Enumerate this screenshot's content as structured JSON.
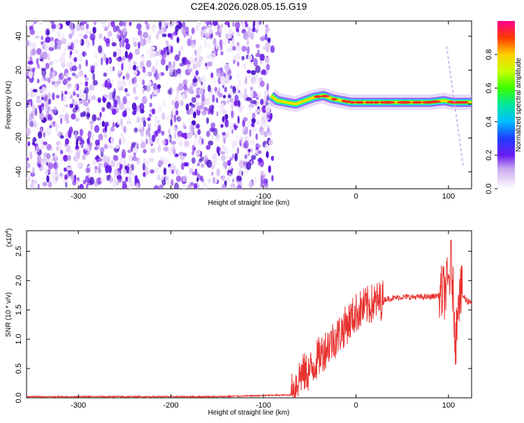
{
  "chart_data": [
    {
      "type": "heatmap",
      "title": "C2E4.2026.028.05.15.G19",
      "xlabel": "Height of straight line (km)",
      "ylabel": "Frequency (Hz)",
      "xlim": [
        -356,
        125
      ],
      "ylim": [
        -50,
        49
      ],
      "xticks": [
        -300,
        -200,
        -100,
        0,
        100
      ],
      "yticks": [
        -40,
        -20,
        0,
        20,
        40
      ],
      "noise_region_x": [
        -356,
        -90
      ],
      "signal_trace": {
        "x": [
          -92,
          -85,
          -75,
          -65,
          -55,
          -45,
          -35,
          -25,
          -15,
          -5,
          5,
          20,
          40,
          60,
          80,
          95,
          105,
          115,
          125
        ],
        "freq": [
          5,
          2,
          1,
          0,
          2,
          4,
          5,
          3,
          2,
          1,
          1,
          1,
          1,
          1,
          1,
          2,
          1,
          1,
          1
        ]
      },
      "colorbar": {
        "label": "Normalized spectral amplitude",
        "range": [
          0,
          1
        ],
        "ticks": [
          0.0,
          0.2,
          0.4,
          0.6,
          0.8
        ]
      }
    },
    {
      "type": "line",
      "title": "",
      "xlabel": "Height of straight line (km)",
      "ylabel": "SNR (10 * v/v)",
      "y_multiplier": "(x10",
      "y_multiplier_exp": "4",
      "y_multiplier_close": ")",
      "xlim": [
        -356,
        125
      ],
      "ylim": [
        0,
        2.85
      ],
      "xticks": [
        -300,
        -200,
        -100,
        0,
        100
      ],
      "yticks": [
        "0.0",
        "0.5",
        "1.0",
        "1.5",
        "2.0",
        "2.5"
      ],
      "color": "#e8322f",
      "series": [
        {
          "name": "SNR",
          "x": [
            -356,
            -150,
            -70,
            -60,
            -50,
            -40,
            -30,
            -20,
            -10,
            0,
            10,
            20,
            30,
            40,
            50,
            60,
            70,
            80,
            90,
            95,
            100,
            103,
            106,
            108,
            110,
            115,
            120,
            125
          ],
          "y": [
            0.02,
            0.02,
            0.05,
            0.4,
            0.45,
            0.7,
            0.9,
            1.05,
            1.25,
            1.45,
            1.55,
            1.62,
            1.68,
            1.7,
            1.72,
            1.72,
            1.72,
            1.72,
            1.75,
            1.8,
            1.95,
            2.3,
            1.5,
            0.9,
            1.8,
            1.75,
            1.65,
            1.65
          ]
        }
      ]
    }
  ]
}
